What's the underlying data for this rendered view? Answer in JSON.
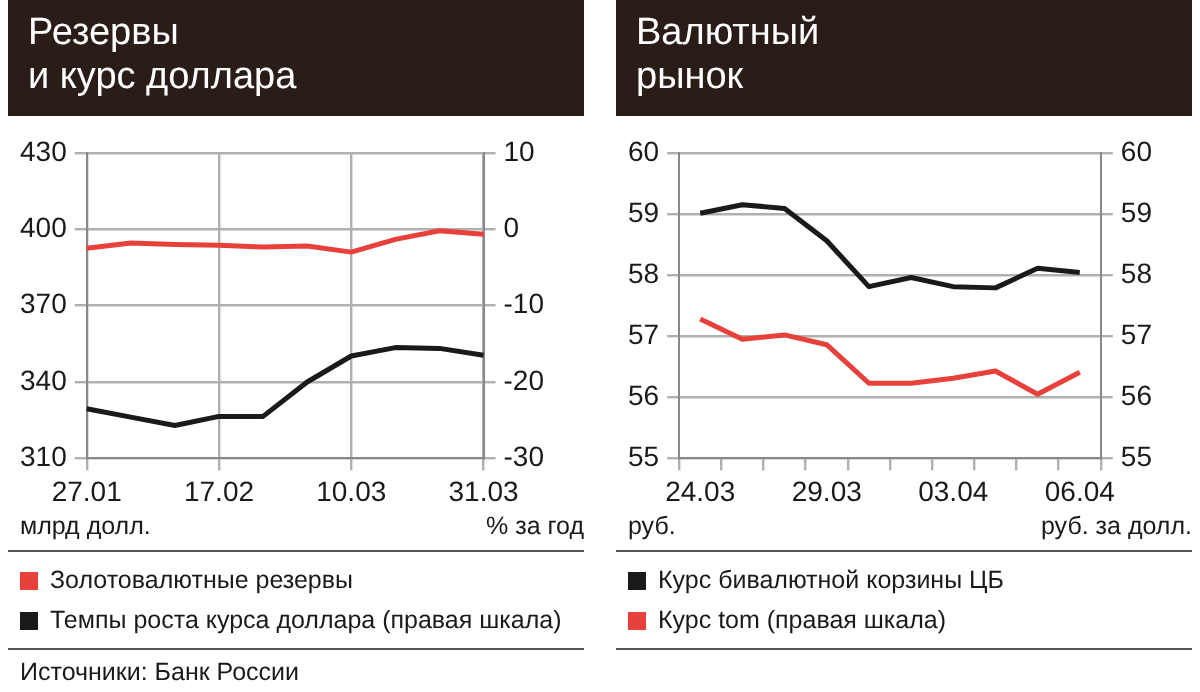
{
  "chart_data": [
    {
      "type": "line",
      "title": "Резервы\nи курс доллара",
      "ylabel": "млрд долл.",
      "y2label": "% за год",
      "categories": [
        "27.01",
        null,
        null,
        "17.02",
        null,
        null,
        "10.03",
        null,
        null,
        "31.03"
      ],
      "series": [
        {
          "name": "Золотовалютные резервы",
          "color": "#e8403a",
          "values": [
            392.5,
            394.6,
            394,
            393.7,
            393,
            393.4,
            391,
            396,
            399.4,
            398
          ]
        },
        {
          "name": "Темпы роста курса доллара (правая шкала)",
          "color": "#1a1a1a",
          "axis": "y2",
          "values": [
            -23.5,
            -24.6,
            -25.7,
            -24.5,
            -24.5,
            -20,
            -16.6,
            -15.5,
            -15.6,
            -16.5
          ]
        }
      ],
      "ylim": [
        310,
        430
      ],
      "yticks": [
        310,
        340,
        370,
        400,
        430
      ],
      "y2lim": [
        -30,
        10
      ],
      "y2ticks": [
        -30,
        -20,
        -10,
        0,
        10
      ],
      "grid": true,
      "legend": "bottom",
      "marker": "none",
      "line_style": "solid",
      "annotations": [
        "Источники: Банк России"
      ]
    },
    {
      "type": "line",
      "title": "Валютный\nрынок",
      "ylabel": "руб.",
      "y2label": "руб. за долл.",
      "categories": [
        "24.03",
        null,
        null,
        "29.03",
        null,
        null,
        "03.04",
        null,
        null,
        "06.04"
      ],
      "series": [
        {
          "name": "Курс бивалютной корзины ЦБ",
          "color": "#1a1a1a",
          "values": [
            59.01,
            59.15,
            59.09,
            58.56,
            57.81,
            57.96,
            57.81,
            57.79,
            58.11,
            58.04
          ]
        },
        {
          "name": "Курс tom (правая шкала)",
          "color": "#e8403a",
          "axis": "y2",
          "values": [
            57.28,
            56.95,
            57.02,
            56.86,
            56.23,
            56.23,
            56.31,
            56.43,
            56.05,
            56.41
          ]
        }
      ],
      "ylim": [
        55,
        60
      ],
      "yticks": [
        55,
        56,
        57,
        58,
        59,
        60
      ],
      "y2lim": [
        55,
        60
      ],
      "y2ticks": [
        55,
        56,
        57,
        58,
        59,
        60
      ],
      "grid": "y",
      "legend": "bottom",
      "marker": "none",
      "line_style": "solid"
    }
  ]
}
